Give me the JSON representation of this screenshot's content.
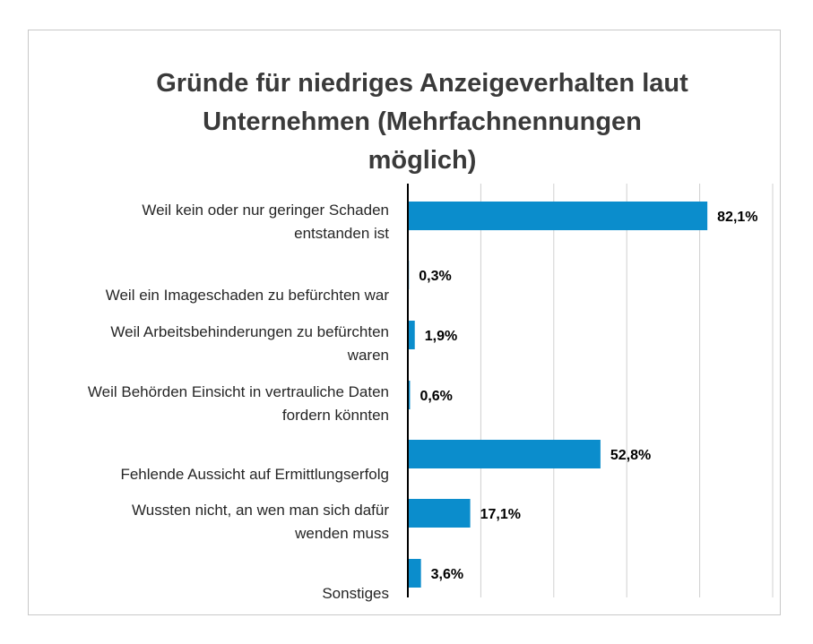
{
  "chart_data": {
    "type": "bar",
    "orientation": "horizontal",
    "title_lines": [
      "Gründe für niedriges Anzeigeverhalten laut",
      "Unternehmen (Mehrfachnennungen",
      "möglich)"
    ],
    "categories": [
      [
        "Weil kein oder nur geringer Schaden",
        "entstanden ist"
      ],
      [
        "Weil ein Imageschaden zu befürchten war"
      ],
      [
        "Weil Arbeitsbehinderungen zu befürchten",
        "waren"
      ],
      [
        "Weil Behörden Einsicht in vertrauliche Daten",
        "fordern könnten"
      ],
      [
        "Fehlende Aussicht auf Ermittlungserfolg"
      ],
      [
        "Wussten nicht, an wen man sich dafür",
        "wenden muss"
      ],
      [
        "Sonstiges"
      ]
    ],
    "values": [
      82.1,
      0.3,
      1.9,
      0.6,
      52.8,
      17.1,
      3.6
    ],
    "value_labels": [
      "82,1%",
      "0,3%",
      "1,9%",
      "0,6%",
      "52,8%",
      "17,1%",
      "3,6%"
    ],
    "xlim": [
      0,
      100
    ],
    "gridlines": true,
    "bar_color": "#0b8dcc",
    "gridline_color": "#d0d0d0",
    "axis_color": "#000000"
  }
}
